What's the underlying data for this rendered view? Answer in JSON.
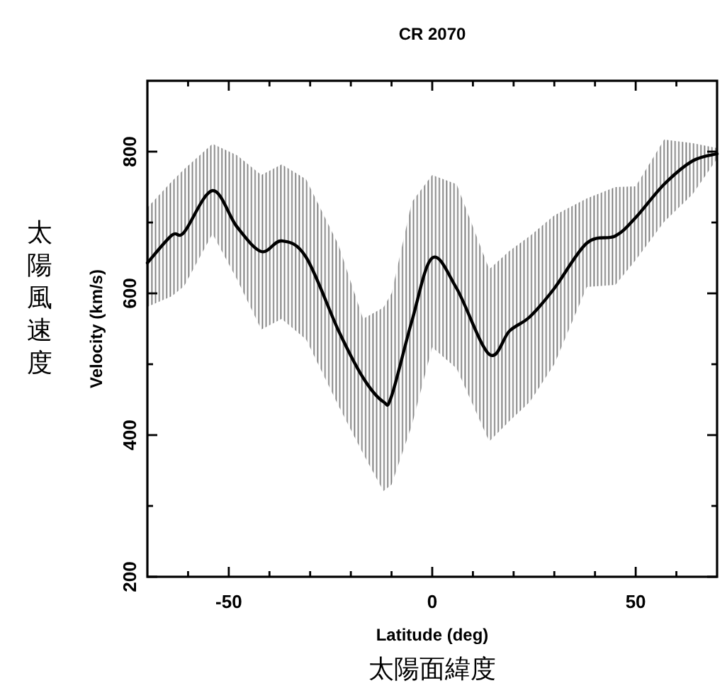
{
  "chart_data": {
    "type": "line",
    "title": "CR 2070",
    "xlabel": "Latitude (deg)",
    "ylabel": "Velocity (km/s)",
    "annotations": [
      "太陽風速度",
      "太陽面緯度"
    ],
    "xlim": [
      -70,
      70
    ],
    "ylim": [
      200,
      900
    ],
    "xticks": [
      {
        "value": -60,
        "label": null
      },
      -50,
      {
        "value": -40,
        "label": null
      },
      {
        "value": -30,
        "label": null
      },
      {
        "value": -20,
        "label": null
      },
      {
        "value": -10,
        "label": null
      },
      0,
      {
        "value": 10,
        "label": null
      },
      {
        "value": 20,
        "label": null
      },
      {
        "value": 30,
        "label": null
      },
      {
        "value": 40,
        "label": null
      },
      50,
      {
        "value": 60,
        "label": null
      }
    ],
    "yticks": [
      200,
      {
        "value": 300,
        "label": null
      },
      400,
      {
        "value": 500,
        "label": null
      },
      600,
      {
        "value": 700,
        "label": null
      },
      800
    ],
    "marker": "none",
    "line_style": "solid",
    "series": [
      {
        "color": "#000000",
        "x": [
          -70,
          -64,
          -61,
          -54,
          -48,
          -42,
          -37,
          -31,
          -23,
          -17,
          -12,
          -10,
          -5,
          0,
          6,
          14,
          19,
          24,
          30,
          38,
          45,
          50,
          57,
          64,
          70
        ],
        "values": [
          643,
          682,
          686,
          745,
          694,
          659,
          674,
          651,
          547,
          481,
          447,
          455,
          561,
          650,
          607,
          514,
          547,
          567,
          607,
          671,
          681,
          707,
          754,
          787,
          797
        ],
        "lower": [
          581,
          596,
          610,
          684,
          620,
          549,
          564,
          535,
          441,
          374,
          321,
          330,
          414,
          524,
          494,
          391,
          420,
          447,
          500,
          609,
          612,
          647,
          701,
          740,
          790
        ],
        "upper": [
          721,
          758,
          775,
          811,
          795,
          767,
          782,
          761,
          668,
          564,
          580,
          600,
          729,
          767,
          754,
          634,
          660,
          681,
          710,
          734,
          750,
          751,
          817,
          812,
          805
        ]
      }
    ]
  }
}
